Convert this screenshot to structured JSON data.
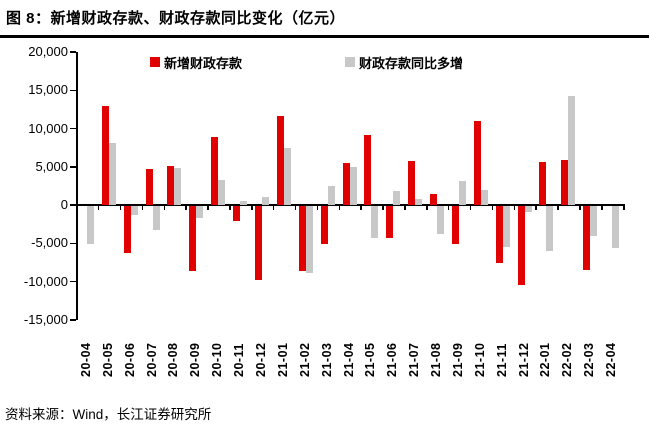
{
  "title": "图 8：新增财政存款、财政存款同比变化（亿元）",
  "footer": "资料来源：Wind，长江证券研究所",
  "axis": {
    "ytick_labels": [
      "20,000",
      "15,000",
      "10,000",
      "5,000",
      "0",
      "-5,000",
      "-10,000",
      "-15,000"
    ],
    "axis_color": "#000000"
  },
  "chart_data": {
    "type": "bar",
    "title": "图 8：新增财政存款、财政存款同比变化（亿元）",
    "unit": "亿元",
    "categories": [
      "20-04",
      "20-05",
      "20-06",
      "20-07",
      "20-08",
      "20-09",
      "20-10",
      "20-11",
      "20-12",
      "21-01",
      "21-02",
      "21-03",
      "21-04",
      "21-05",
      "21-06",
      "21-07",
      "21-08",
      "21-09",
      "21-10",
      "21-11",
      "21-12",
      "22-01",
      "22-02",
      "22-03",
      "22-04"
    ],
    "series": [
      {
        "name": "新增财政存款",
        "color": "#e00000",
        "values": [
          0,
          13000,
          -6100,
          4700,
          5100,
          -8500,
          8900,
          -1900,
          -9600,
          11600,
          -8500,
          -4900,
          5500,
          9100,
          -4100,
          5800,
          1500,
          -5000,
          11000,
          -7400,
          -10300,
          5600,
          5900,
          -8400,
          0
        ]
      },
      {
        "name": "财政存款同比多增",
        "color": "#c8c8c8",
        "values": [
          -4900,
          8100,
          -1200,
          -3100,
          4900,
          -1500,
          3300,
          500,
          1000,
          7500,
          -8700,
          2500,
          5000,
          -4100,
          1800,
          800,
          -3600,
          3100,
          2000,
          -5400,
          -700,
          -5900,
          14300,
          -3900,
          -5500
        ]
      }
    ],
    "ylim": [
      -15000,
      20000
    ],
    "ytick_interval": 5000,
    "grid": false,
    "legend_position": "top"
  }
}
